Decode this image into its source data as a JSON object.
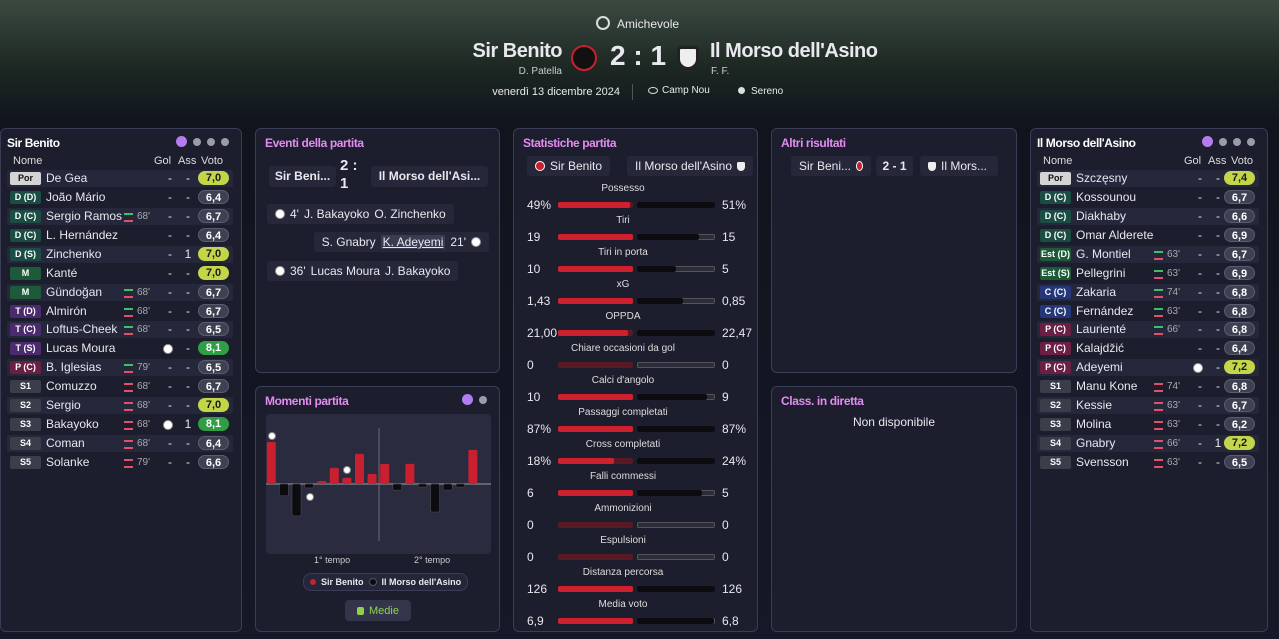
{
  "header": {
    "competition": "Amichevole",
    "home_team": "Sir Benito",
    "home_manager": "D. Patella",
    "score": "2 : 1",
    "away_team": "Il Morso dell'Asino",
    "away_manager": "F. F.",
    "date": "venerdì 13 dicembre 2024",
    "stadium": "Camp Nou",
    "weather": "Sereno"
  },
  "lineups": {
    "columns": [
      "Nome",
      "Gol",
      "Ass",
      "Voto"
    ],
    "home": [
      {
        "pos": "Por",
        "name": "De Gea",
        "gol": "-",
        "ass": "-",
        "voto": "7,0",
        "color": "#d4d4d4"
      },
      {
        "pos": "D (D)",
        "name": "João Mário",
        "gol": "-",
        "ass": "-",
        "voto": "6,4",
        "color": "#1b4d44"
      },
      {
        "pos": "D (C)",
        "name": "Sergio Ramos",
        "sub": "68'",
        "gol": "-",
        "ass": "-",
        "voto": "6,7",
        "color": "#1b4d44"
      },
      {
        "pos": "D (C)",
        "name": "L. Hernández",
        "gol": "-",
        "ass": "-",
        "voto": "6,4",
        "color": "#1b4d44"
      },
      {
        "pos": "D (S)",
        "name": "Zinchenko",
        "gol": "-",
        "ass": "1",
        "voto": "7,0",
        "color": "#1b4d44"
      },
      {
        "pos": "M",
        "name": "Kanté",
        "gol": "-",
        "ass": "-",
        "voto": "7,0",
        "color": "#1d5a3a"
      },
      {
        "pos": "M",
        "name": "Gündoğan",
        "sub": "68'",
        "gol": "-",
        "ass": "-",
        "voto": "6,7",
        "color": "#1d5a3a"
      },
      {
        "pos": "T (D)",
        "name": "Almirón",
        "sub": "68'",
        "gol": "-",
        "ass": "-",
        "voto": "6,7",
        "color": "#4b2a6e"
      },
      {
        "pos": "T (C)",
        "name": "Loftus-Cheek",
        "sub": "68'",
        "gol": "-",
        "ass": "-",
        "voto": "6,5",
        "color": "#4b2a6e"
      },
      {
        "pos": "T (S)",
        "name": "Lucas Moura",
        "gol": null,
        "ass": "-",
        "voto": "8,1",
        "color": "#4b2a6e"
      },
      {
        "pos": "P (C)",
        "name": "B. Iglesias",
        "sub": "79'",
        "gol": "-",
        "ass": "-",
        "voto": "6,5",
        "color": "#6b1f45"
      },
      {
        "pos": "S1",
        "name": "Comuzzo",
        "sub": "68'",
        "gol": "-",
        "ass": "-",
        "voto": "6,7",
        "color": "#3a3d4a"
      },
      {
        "pos": "S2",
        "name": "Sergio",
        "sub": "68'",
        "gol": "-",
        "ass": "-",
        "voto": "7,0",
        "color": "#3a3d4a"
      },
      {
        "pos": "S3",
        "name": "Bakayoko",
        "sub": "68'",
        "gol": null,
        "ass": "1",
        "voto": "8,1",
        "color": "#3a3d4a"
      },
      {
        "pos": "S4",
        "name": "Coman",
        "sub": "68'",
        "gol": "-",
        "ass": "-",
        "voto": "6,4",
        "color": "#3a3d4a"
      },
      {
        "pos": "S5",
        "name": "Solanke",
        "sub": "79'",
        "gol": "-",
        "ass": "-",
        "voto": "6,6",
        "color": "#3a3d4a"
      }
    ],
    "away": [
      {
        "pos": "Por",
        "name": "Szczęsny",
        "gol": "-",
        "ass": "-",
        "voto": "7,4",
        "color": "#d4d4d4"
      },
      {
        "pos": "D (C)",
        "name": "Kossounou",
        "gol": "-",
        "ass": "-",
        "voto": "6,7",
        "color": "#1b4d44"
      },
      {
        "pos": "D (C)",
        "name": "Diakhaby",
        "gol": "-",
        "ass": "-",
        "voto": "6,6",
        "color": "#1b4d44"
      },
      {
        "pos": "D (C)",
        "name": "Omar Alderete",
        "gol": "-",
        "ass": "-",
        "voto": "6,9",
        "color": "#1b4d44"
      },
      {
        "pos": "Est (D)",
        "name": "G. Montiel",
        "sub": "63'",
        "gol": "-",
        "ass": "-",
        "voto": "6,7",
        "color": "#1d5a3a"
      },
      {
        "pos": "Est (S)",
        "name": "Pellegrini",
        "sub": "63'",
        "gol": "-",
        "ass": "-",
        "voto": "6,9",
        "color": "#1d5a3a"
      },
      {
        "pos": "C (C)",
        "name": "Zakaria",
        "sub": "74'",
        "gol": "-",
        "ass": "-",
        "voto": "6,8",
        "color": "#23377a"
      },
      {
        "pos": "C (C)",
        "name": "Fernández",
        "sub": "63'",
        "gol": "-",
        "ass": "-",
        "voto": "6,8",
        "color": "#23377a"
      },
      {
        "pos": "P (C)",
        "name": "Laurienté",
        "sub": "66'",
        "gol": "-",
        "ass": "-",
        "voto": "6,8",
        "color": "#6b1f45"
      },
      {
        "pos": "P (C)",
        "name": "Kalajdžić",
        "gol": "-",
        "ass": "-",
        "voto": "6,4",
        "color": "#6b1f45"
      },
      {
        "pos": "P (C)",
        "name": "Adeyemi",
        "gol": null,
        "ass": "-",
        "voto": "7,2",
        "color": "#6b1f45"
      },
      {
        "pos": "S1",
        "name": "Manu Kone",
        "sub": "74'",
        "gol": "-",
        "ass": "-",
        "voto": "6,8",
        "color": "#3a3d4a"
      },
      {
        "pos": "S2",
        "name": "Kessie",
        "sub": "63'",
        "gol": "-",
        "ass": "-",
        "voto": "6,7",
        "color": "#3a3d4a"
      },
      {
        "pos": "S3",
        "name": "Molina",
        "sub": "63'",
        "gol": "-",
        "ass": "-",
        "voto": "6,2",
        "color": "#3a3d4a"
      },
      {
        "pos": "S4",
        "name": "Gnabry",
        "sub": "66'",
        "gol": "-",
        "ass": "1",
        "voto": "7,2",
        "color": "#3a3d4a"
      },
      {
        "pos": "S5",
        "name": "Svensson",
        "sub": "63'",
        "gol": "-",
        "ass": "-",
        "voto": "6,5",
        "color": "#3a3d4a"
      }
    ]
  },
  "events": {
    "title": "Eventi della partita",
    "home_short": "Sir Beni...",
    "away_short": "Il Morso dell'Asi...",
    "items": [
      {
        "side": "home",
        "minute": "4'",
        "scorer": "J. Bakayoko",
        "assist": "O. Zinchenko"
      },
      {
        "side": "away",
        "minute": "21'",
        "scorer": "K. Adeyemi",
        "assist": "S. Gnabry"
      },
      {
        "side": "home",
        "minute": "36'",
        "scorer": "Lucas Moura",
        "assist": "J. Bakayoko"
      }
    ]
  },
  "momentum": {
    "title": "Momenti partita",
    "halves": [
      "1° tempo",
      "2° tempo"
    ],
    "ylim": [
      0,
      16
    ],
    "home": [
      9.6,
      null,
      null,
      null,
      0.7,
      3.7,
      1.4,
      6.9,
      2.3,
      4.6,
      null,
      4.6,
      null,
      null,
      null,
      null,
      7.8,
      null
    ],
    "away": [
      null,
      2.7,
      7.3,
      0.9,
      null,
      null,
      null,
      null,
      null,
      null,
      1.4,
      null,
      0.7,
      6.4,
      1.4,
      0.7,
      null,
      null
    ],
    "home_color": "#c8202f",
    "away_color": "#0b0b10",
    "button": "Medie"
  },
  "stats": {
    "title": "Statistiche partita",
    "items": [
      {
        "name": "Possesso",
        "home": 49,
        "away": 51,
        "home_label": "49%",
        "away_label": "51%"
      },
      {
        "name": "Tiri",
        "home": 19,
        "away": 15
      },
      {
        "name": "Tiri in porta",
        "home": 10,
        "away": 5
      },
      {
        "name": "xG",
        "home": 1.43,
        "away": 0.85,
        "home_label": "1,43",
        "away_label": "0,85"
      },
      {
        "name": "OPPDA",
        "home": 21,
        "away": 22.47,
        "home_label": "21,00",
        "away_label": "22,47"
      },
      {
        "name": "Chiare occasioni da gol",
        "home": 0,
        "away": 0
      },
      {
        "name": "Calci d'angolo",
        "home": 10,
        "away": 9
      },
      {
        "name": "Passaggi completati",
        "home": 87,
        "away": 87,
        "home_label": "87%",
        "away_label": "87%"
      },
      {
        "name": "Cross completati",
        "home": 18,
        "away": 24,
        "home_label": "18%",
        "away_label": "24%"
      },
      {
        "name": "Falli commessi",
        "home": 6,
        "away": 5
      },
      {
        "name": "Ammonizioni",
        "home": 0,
        "away": 0
      },
      {
        "name": "Espulsioni",
        "home": 0,
        "away": 0
      },
      {
        "name": "Distanza percorsa",
        "home": 126,
        "away": 126
      },
      {
        "name": "Media voto",
        "home": 6.9,
        "away": 6.8,
        "home_label": "6,9",
        "away_label": "6,8"
      }
    ]
  },
  "other_results": {
    "title": "Altri risultati",
    "home": "Sir Beni...",
    "score": "2 - 1",
    "away": "Il Mors..."
  },
  "live_table": {
    "title": "Class. in diretta",
    "message": "Non disponibile"
  }
}
